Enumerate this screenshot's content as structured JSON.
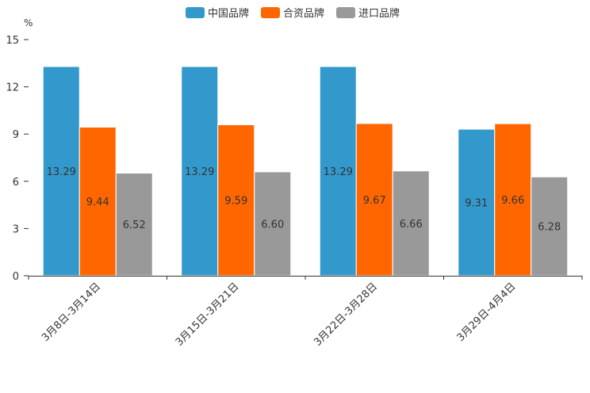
{
  "chart_data": {
    "type": "bar",
    "unit": "%",
    "categories": [
      "3月8日-3月14日",
      "3月15日-3月21日",
      "3月22日-3月28日",
      "3月29日-4月4日"
    ],
    "series": [
      {
        "name": "中国品牌",
        "color": "#3399CC",
        "values": [
          13.29,
          13.29,
          13.29,
          9.31
        ]
      },
      {
        "name": "合资品牌",
        "color": "#FF6600",
        "values": [
          9.44,
          9.59,
          9.67,
          9.66
        ]
      },
      {
        "name": "进口品牌",
        "color": "#999999",
        "values": [
          6.52,
          6.6,
          6.66,
          6.28
        ]
      }
    ],
    "data_labels": [
      [
        "13.29",
        "13.29",
        "13.29",
        "9.31"
      ],
      [
        "9.44",
        "9.59",
        "9.67",
        "9.66"
      ],
      [
        "6.52",
        "6.60",
        "6.66",
        "6.28"
      ]
    ],
    "yticks": [
      "0",
      "3",
      "6",
      "9",
      "12",
      "15"
    ],
    "ylim": [
      0,
      15
    ],
    "legend_position": "top-center",
    "grid": false
  }
}
